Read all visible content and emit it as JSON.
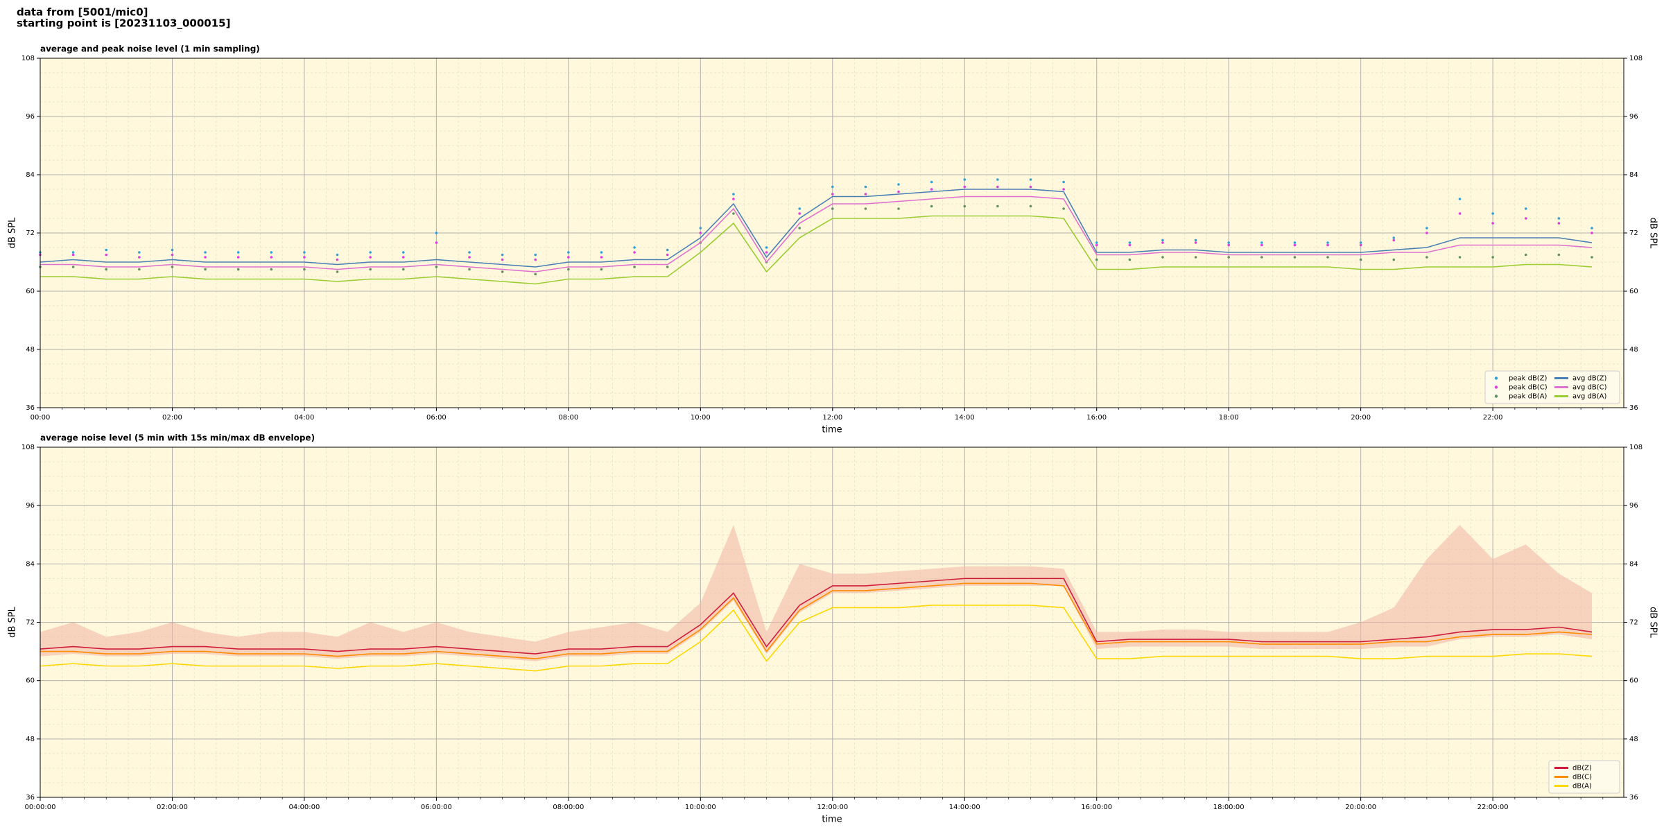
{
  "header": {
    "lines": [
      "data from [5001/mic0]",
      "starting point is [20231103_000015]"
    ]
  },
  "chart_data": [
    {
      "type": "line",
      "title": "average and peak noise level (1 min sampling)",
      "xlabel": "time",
      "ylabel": "dB SPL",
      "x": [
        "00:00",
        "00:30",
        "01:00",
        "01:30",
        "02:00",
        "02:30",
        "03:00",
        "03:30",
        "04:00",
        "04:30",
        "05:00",
        "05:30",
        "06:00",
        "06:30",
        "07:00",
        "07:30",
        "08:00",
        "08:30",
        "09:00",
        "09:30",
        "10:00",
        "10:30",
        "11:00",
        "11:30",
        "12:00",
        "12:30",
        "13:00",
        "13:30",
        "14:00",
        "14:30",
        "15:00",
        "15:30",
        "16:00",
        "16:30",
        "17:00",
        "17:30",
        "18:00",
        "18:30",
        "19:00",
        "19:30",
        "20:00",
        "20:30",
        "21:00",
        "21:30",
        "22:00",
        "22:30",
        "23:00",
        "23:30"
      ],
      "xlim": [
        "00:00",
        "23:59"
      ],
      "xticks": [
        "00:00",
        "02:00",
        "04:00",
        "06:00",
        "08:00",
        "10:00",
        "12:00",
        "14:00",
        "16:00",
        "18:00",
        "20:00",
        "22:00"
      ],
      "ylim": [
        36,
        108
      ],
      "yticks": [
        36,
        48,
        60,
        72,
        84,
        96,
        108
      ],
      "grid": true,
      "minor_grid": true,
      "right_axis": true,
      "legend": "lower right",
      "legend_columns": 2,
      "series": [
        {
          "name": "peak dB(Z)",
          "type": "scatter",
          "color": "#2f9fd8",
          "values": [
            68,
            68,
            68.5,
            68,
            68.5,
            68,
            68,
            68,
            68,
            67.5,
            68,
            68,
            72,
            68,
            67.5,
            67.5,
            68,
            68,
            69,
            68.5,
            73,
            80,
            69,
            77,
            81.5,
            81.5,
            82,
            82.5,
            83,
            83,
            83,
            82.5,
            70,
            70,
            70.5,
            70.5,
            70,
            70,
            70,
            70,
            70,
            71,
            73,
            79,
            76,
            77,
            75,
            73
          ]
        },
        {
          "name": "peak dB(C)",
          "type": "scatter",
          "color": "#e03ce0",
          "values": [
            67.5,
            67.5,
            67.5,
            67,
            67.5,
            67,
            67,
            67,
            67,
            66.5,
            67,
            67,
            70,
            67,
            66.5,
            66.5,
            67,
            67,
            68,
            67.5,
            72,
            79,
            68,
            76,
            80,
            80,
            80.5,
            81,
            81.5,
            81.5,
            81.5,
            81,
            69.5,
            69.5,
            70,
            70,
            69.5,
            69.5,
            69.5,
            69.5,
            69.5,
            70.5,
            72,
            76,
            74,
            75,
            74,
            72
          ]
        },
        {
          "name": "peak dB(A)",
          "type": "scatter",
          "color": "#5f8f63",
          "values": [
            65,
            65,
            64.5,
            64.5,
            65,
            64.5,
            64.5,
            64.5,
            64.5,
            64,
            64.5,
            64.5,
            65,
            64.5,
            64,
            63.5,
            64.5,
            64.5,
            65,
            65,
            70,
            76,
            66,
            73,
            77,
            77,
            77,
            77.5,
            77.5,
            77.5,
            77.5,
            77,
            66.5,
            66.5,
            67,
            67,
            67,
            67,
            67,
            67,
            66.5,
            66.5,
            67,
            67,
            67,
            67.5,
            67.5,
            67
          ]
        },
        {
          "name": "avg dB(Z)",
          "type": "line",
          "color": "#4a7fb5",
          "values": [
            66,
            66.5,
            66,
            66,
            66.5,
            66,
            66,
            66,
            66,
            65.5,
            66,
            66,
            66.5,
            66,
            65.5,
            65,
            66,
            66,
            66.5,
            66.5,
            71,
            78,
            67,
            75,
            79.5,
            79.5,
            80,
            80.5,
            81,
            81,
            81,
            80.5,
            68,
            68,
            68.5,
            68.5,
            68,
            68,
            68,
            68,
            68,
            68.5,
            69,
            71,
            71,
            71,
            71,
            70
          ]
        },
        {
          "name": "avg dB(C)",
          "type": "line",
          "color": "#e070d0",
          "values": [
            65.5,
            65.5,
            65,
            65,
            65.5,
            65,
            65,
            65,
            65,
            64.5,
            65,
            65,
            65.5,
            65,
            64.5,
            64,
            65,
            65,
            65.5,
            65.5,
            70,
            77,
            66,
            74,
            78,
            78,
            78.5,
            79,
            79.5,
            79.5,
            79.5,
            79,
            67.5,
            67.5,
            68,
            68,
            67.5,
            67.5,
            67.5,
            67.5,
            67.5,
            68,
            68,
            69.5,
            69.5,
            69.5,
            69.5,
            69
          ]
        },
        {
          "name": "avg dB(A)",
          "type": "line",
          "color": "#9acd32",
          "values": [
            63,
            63,
            62.5,
            62.5,
            63,
            62.5,
            62.5,
            62.5,
            62.5,
            62,
            62.5,
            62.5,
            63,
            62.5,
            62,
            61.5,
            62.5,
            62.5,
            63,
            63,
            68,
            74,
            64,
            71,
            75,
            75,
            75,
            75.5,
            75.5,
            75.5,
            75.5,
            75,
            64.5,
            64.5,
            65,
            65,
            65,
            65,
            65,
            65,
            64.5,
            64.5,
            65,
            65,
            65,
            65.5,
            65.5,
            65
          ]
        }
      ]
    },
    {
      "type": "line",
      "title": "average noise level (5 min with 15s min/max dB envelope)",
      "xlabel": "time",
      "ylabel": "dB SPL",
      "x": [
        "00:00:00",
        "00:30:00",
        "01:00:00",
        "01:30:00",
        "02:00:00",
        "02:30:00",
        "03:00:00",
        "03:30:00",
        "04:00:00",
        "04:30:00",
        "05:00:00",
        "05:30:00",
        "06:00:00",
        "06:30:00",
        "07:00:00",
        "07:30:00",
        "08:00:00",
        "08:30:00",
        "09:00:00",
        "09:30:00",
        "10:00:00",
        "10:30:00",
        "11:00:00",
        "11:30:00",
        "12:00:00",
        "12:30:00",
        "13:00:00",
        "13:30:00",
        "14:00:00",
        "14:30:00",
        "15:00:00",
        "15:30:00",
        "16:00:00",
        "16:30:00",
        "17:00:00",
        "17:30:00",
        "18:00:00",
        "18:30:00",
        "19:00:00",
        "19:30:00",
        "20:00:00",
        "20:30:00",
        "21:00:00",
        "21:30:00",
        "22:00:00",
        "22:30:00",
        "23:00:00",
        "23:30:00"
      ],
      "xlim": [
        "00:00:00",
        "23:59:00"
      ],
      "xticks": [
        "00:00:00",
        "02:00:00",
        "04:00:00",
        "06:00:00",
        "08:00:00",
        "10:00:00",
        "12:00:00",
        "14:00:00",
        "16:00:00",
        "18:00:00",
        "20:00:00",
        "22:00:00"
      ],
      "ylim": [
        36,
        108
      ],
      "yticks": [
        36,
        48,
        60,
        72,
        84,
        96,
        108
      ],
      "grid": true,
      "minor_grid": true,
      "right_axis": true,
      "legend": "lower right",
      "legend_columns": 1,
      "envelope_color": "#f2b9a6",
      "series": [
        {
          "name": "dB(Z)",
          "type": "line",
          "color": "#d01c3c",
          "values": [
            66.5,
            67,
            66.5,
            66.5,
            67,
            67,
            66.5,
            66.5,
            66.5,
            66,
            66.5,
            66.5,
            67,
            66.5,
            66,
            65.5,
            66.5,
            66.5,
            67,
            67,
            71.5,
            78,
            67,
            75.5,
            79.5,
            79.5,
            80,
            80.5,
            81,
            81,
            81,
            81,
            68,
            68.5,
            68.5,
            68.5,
            68.5,
            68,
            68,
            68,
            68,
            68.5,
            69,
            70,
            70.5,
            70.5,
            71,
            70
          ],
          "min": [
            65,
            65.5,
            65,
            65,
            65.5,
            65.5,
            65,
            65,
            65,
            64.5,
            65,
            65,
            65.5,
            65,
            64.5,
            64,
            65,
            65,
            65.5,
            65.5,
            70,
            76.5,
            65.5,
            74,
            78,
            78,
            78.5,
            79,
            79.5,
            79.5,
            79.5,
            79.5,
            66.5,
            67,
            67,
            67,
            67,
            66.5,
            66.5,
            66.5,
            66.5,
            67,
            67,
            68.5,
            69,
            69,
            69.5,
            68.5
          ],
          "max": [
            70,
            72,
            69,
            70,
            72,
            70,
            69,
            70,
            70,
            69,
            72,
            70,
            72,
            70,
            69,
            68,
            70,
            71,
            72,
            70,
            76,
            92,
            70,
            84,
            82,
            82,
            82.5,
            83,
            83.5,
            83.5,
            83.5,
            83,
            70,
            70,
            70.5,
            70.5,
            70,
            70,
            70,
            70,
            72,
            75,
            85,
            92,
            85,
            88,
            82,
            78
          ]
        },
        {
          "name": "dB(C)",
          "type": "line",
          "color": "#ff8c00",
          "values": [
            66,
            66,
            65.5,
            65.5,
            66,
            66,
            65.5,
            65.5,
            65.5,
            65,
            65.5,
            65.5,
            66,
            65.5,
            65,
            64.5,
            65.5,
            65.5,
            66,
            66,
            70.5,
            77,
            66,
            74.5,
            78.5,
            78.5,
            79,
            79.5,
            80,
            80,
            80,
            79.5,
            67.5,
            68,
            68,
            68,
            68,
            67.5,
            67.5,
            67.5,
            67.5,
            68,
            68,
            69,
            69.5,
            69.5,
            70,
            69.5
          ]
        },
        {
          "name": "dB(A)",
          "type": "line",
          "color": "#ffd700",
          "values": [
            63,
            63.5,
            63,
            63,
            63.5,
            63,
            63,
            63,
            63,
            62.5,
            63,
            63,
            63.5,
            63,
            62.5,
            62,
            63,
            63,
            63.5,
            63.5,
            68,
            74.5,
            64,
            72,
            75,
            75,
            75,
            75.5,
            75.5,
            75.5,
            75.5,
            75,
            64.5,
            64.5,
            65,
            65,
            65,
            65,
            65,
            65,
            64.5,
            64.5,
            65,
            65,
            65,
            65.5,
            65.5,
            65
          ]
        }
      ]
    }
  ]
}
